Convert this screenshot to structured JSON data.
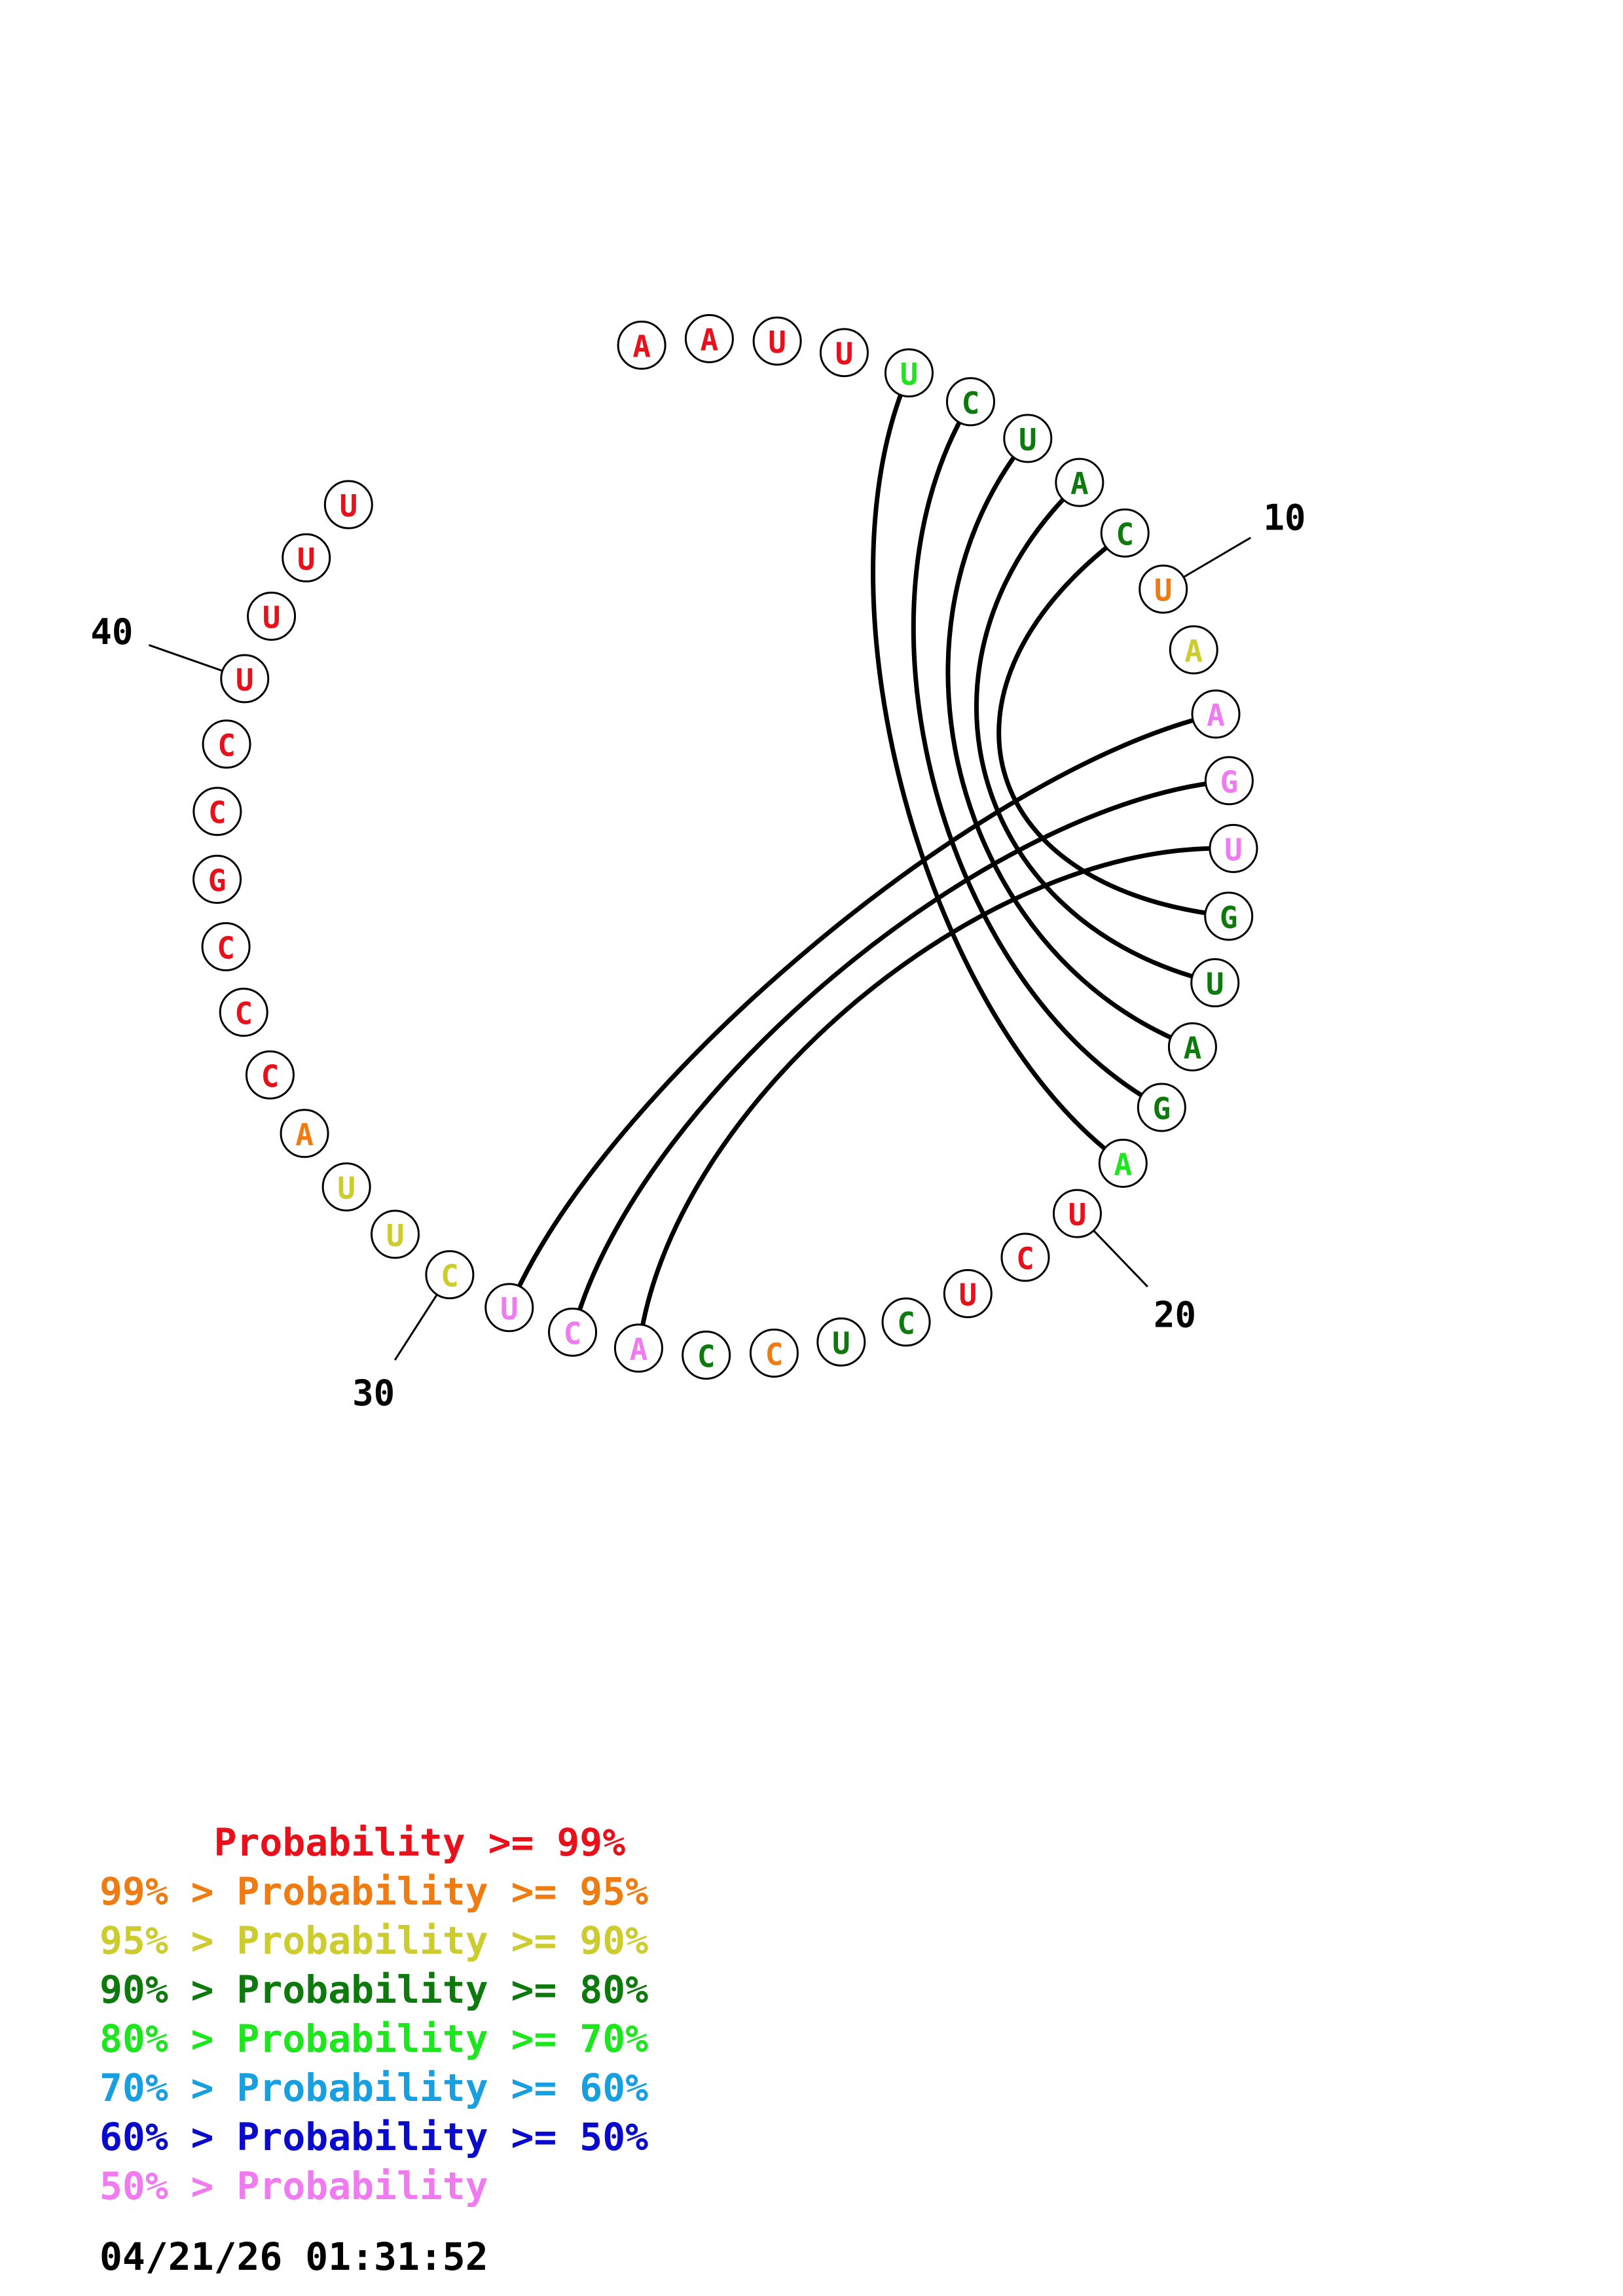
{
  "diagram": {
    "sequence": [
      "A",
      "A",
      "U",
      "U",
      "U",
      "C",
      "U",
      "A",
      "C",
      "U",
      "A",
      "A",
      "G",
      "U",
      "G",
      "U",
      "A",
      "G",
      "A",
      "U",
      "C",
      "U",
      "C",
      "U",
      "C",
      "C",
      "A",
      "C",
      "U",
      "C",
      "U",
      "U",
      "A",
      "C",
      "C",
      "C",
      "G",
      "C",
      "C",
      "U",
      "U",
      "U",
      "U"
    ],
    "probability_class": [
      1,
      1,
      1,
      1,
      5,
      4,
      4,
      4,
      4,
      2,
      3,
      8,
      8,
      8,
      4,
      4,
      4,
      4,
      5,
      1,
      1,
      1,
      4,
      4,
      2,
      4,
      8,
      8,
      8,
      3,
      3,
      3,
      2,
      1,
      1,
      1,
      1,
      1,
      1,
      1,
      1,
      1,
      1
    ],
    "pairs": [
      [
        5,
        19
      ],
      [
        6,
        18
      ],
      [
        7,
        17
      ],
      [
        8,
        16
      ],
      [
        9,
        15
      ],
      [
        12,
        29
      ],
      [
        13,
        28
      ],
      [
        14,
        27
      ]
    ],
    "position_labels": [
      {
        "base": 10,
        "text": "10"
      },
      {
        "base": 20,
        "text": "20"
      },
      {
        "base": 30,
        "text": "30"
      },
      {
        "base": 40,
        "text": "40"
      }
    ]
  },
  "legend": {
    "lines": [
      {
        "text": "     Probability >= 99%",
        "color": "#e8101a"
      },
      {
        "text": "99% > Probability >= 95%",
        "color": "#ef7c12"
      },
      {
        "text": "95% > Probability >= 90%",
        "color": "#cccc2e"
      },
      {
        "text": "90% > Probability >= 80%",
        "color": "#0e7a0e"
      },
      {
        "text": "80% > Probability >= 70%",
        "color": "#1ee61e"
      },
      {
        "text": "70% > Probability >= 60%",
        "color": "#189fe0"
      },
      {
        "text": "60% > Probability >= 50%",
        "color": "#0a0acc"
      },
      {
        "text": "50% > Probability",
        "color": "#f07af0"
      }
    ]
  },
  "timestamp": "04/21/26 01:31:52"
}
